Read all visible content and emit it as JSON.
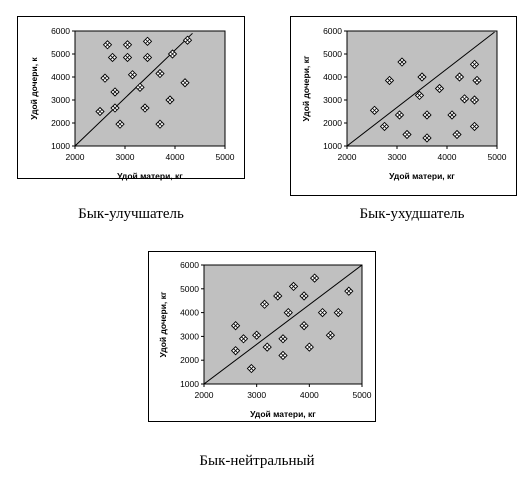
{
  "chart_data": [
    {
      "type": "scatter",
      "caption": "Бык-улучшатель",
      "xlabel": "Удой матери, кг",
      "ylabel": "Удой дочери, к",
      "xlim": [
        2000,
        5000
      ],
      "ylim": [
        1000,
        6000
      ],
      "x_ticks": [
        "2000",
        "3000",
        "4000",
        "5000"
      ],
      "y_ticks": [
        "1000",
        "2000",
        "3000",
        "4000",
        "5000",
        "6000"
      ],
      "grid": false,
      "reference_line": [
        [
          2000,
          1000
        ],
        [
          4350,
          5900
        ]
      ],
      "points": [
        {
          "x": 2650,
          "y": 5400
        },
        {
          "x": 3050,
          "y": 5400
        },
        {
          "x": 3450,
          "y": 5550
        },
        {
          "x": 4250,
          "y": 5600
        },
        {
          "x": 2750,
          "y": 4850
        },
        {
          "x": 3050,
          "y": 4850
        },
        {
          "x": 3450,
          "y": 4850
        },
        {
          "x": 3950,
          "y": 5000
        },
        {
          "x": 2600,
          "y": 3950
        },
        {
          "x": 3150,
          "y": 4100
        },
        {
          "x": 3700,
          "y": 4150
        },
        {
          "x": 2800,
          "y": 3350
        },
        {
          "x": 3300,
          "y": 3550
        },
        {
          "x": 4200,
          "y": 3750
        },
        {
          "x": 2500,
          "y": 2500
        },
        {
          "x": 2800,
          "y": 2650
        },
        {
          "x": 3400,
          "y": 2650
        },
        {
          "x": 3900,
          "y": 3000
        },
        {
          "x": 2900,
          "y": 1950
        },
        {
          "x": 3700,
          "y": 1950
        }
      ]
    },
    {
      "type": "scatter",
      "caption": "Бык-ухудшатель",
      "xlabel": "Удой матери, кг",
      "ylabel": "Удой дочери, кг",
      "xlim": [
        2000,
        5000
      ],
      "ylim": [
        1000,
        6000
      ],
      "x_ticks": [
        "2000",
        "3000",
        "4000",
        "5000"
      ],
      "y_ticks": [
        "1000",
        "2000",
        "3000",
        "4000",
        "5000",
        "6000"
      ],
      "grid": false,
      "reference_line": [
        [
          2000,
          1000
        ],
        [
          4950,
          5950
        ]
      ],
      "points": [
        {
          "x": 3100,
          "y": 4650
        },
        {
          "x": 4550,
          "y": 4550
        },
        {
          "x": 2850,
          "y": 3850
        },
        {
          "x": 3500,
          "y": 4000
        },
        {
          "x": 4250,
          "y": 4000
        },
        {
          "x": 4600,
          "y": 3850
        },
        {
          "x": 3850,
          "y": 3500
        },
        {
          "x": 3450,
          "y": 3200
        },
        {
          "x": 4350,
          "y": 3050
        },
        {
          "x": 4550,
          "y": 3000
        },
        {
          "x": 2550,
          "y": 2550
        },
        {
          "x": 3050,
          "y": 2350
        },
        {
          "x": 3600,
          "y": 2350
        },
        {
          "x": 4100,
          "y": 2350
        },
        {
          "x": 2750,
          "y": 1850
        },
        {
          "x": 4550,
          "y": 1850
        },
        {
          "x": 3200,
          "y": 1500
        },
        {
          "x": 3600,
          "y": 1350
        },
        {
          "x": 4200,
          "y": 1500
        }
      ]
    },
    {
      "type": "scatter",
      "caption": "Бык-нейтральный",
      "xlabel": "Удой матери, кг",
      "ylabel": "Удой дочери, кг",
      "xlim": [
        2000,
        5000
      ],
      "ylim": [
        1000,
        6000
      ],
      "x_ticks": [
        "2000",
        "3000",
        "4000",
        "5000"
      ],
      "y_ticks": [
        "1000",
        "2000",
        "3000",
        "4000",
        "5000",
        "6000"
      ],
      "grid": false,
      "reference_line": [
        [
          2000,
          1000
        ],
        [
          5000,
          6000
        ]
      ],
      "points": [
        {
          "x": 4100,
          "y": 5450
        },
        {
          "x": 3700,
          "y": 5100
        },
        {
          "x": 3400,
          "y": 4700
        },
        {
          "x": 3900,
          "y": 4700
        },
        {
          "x": 4750,
          "y": 4900
        },
        {
          "x": 3150,
          "y": 4350
        },
        {
          "x": 3600,
          "y": 4000
        },
        {
          "x": 4250,
          "y": 4000
        },
        {
          "x": 4550,
          "y": 4000
        },
        {
          "x": 2600,
          "y": 3450
        },
        {
          "x": 3900,
          "y": 3450
        },
        {
          "x": 2750,
          "y": 2900
        },
        {
          "x": 3000,
          "y": 3050
        },
        {
          "x": 3500,
          "y": 2900
        },
        {
          "x": 4400,
          "y": 3050
        },
        {
          "x": 2600,
          "y": 2400
        },
        {
          "x": 3200,
          "y": 2550
        },
        {
          "x": 4000,
          "y": 2550
        },
        {
          "x": 3500,
          "y": 2200
        },
        {
          "x": 2900,
          "y": 1650
        }
      ]
    }
  ],
  "colors": {
    "plot_area": "#c0c0c0",
    "frame": "#000000",
    "panel_border": "#000000",
    "marker_fill": "#ffffff",
    "marker_stroke": "#000000"
  }
}
